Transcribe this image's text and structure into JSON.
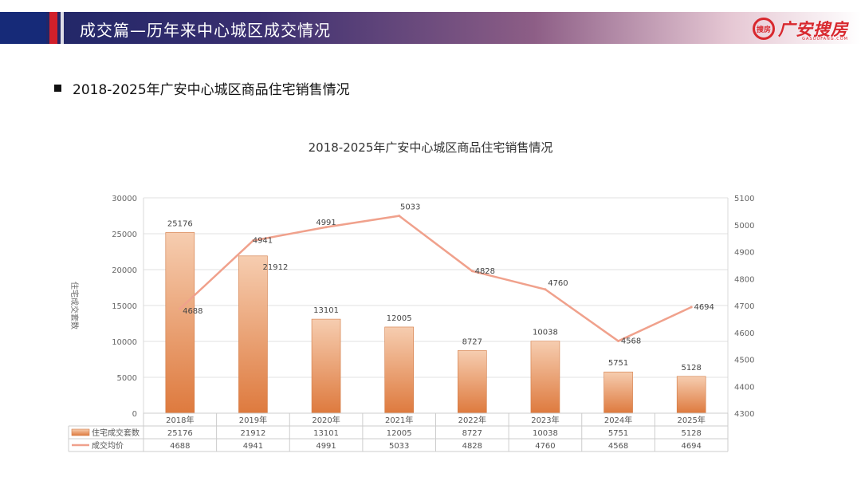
{
  "header": {
    "title": "成交篇—历年来中心城区成交情况",
    "logo_text": "广安搜房",
    "logo_mark": "搜房",
    "logo_sub": "GASOUFANG.COM"
  },
  "section": {
    "subtitle": "2018-2025年广安中心城区商品住宅销售情况"
  },
  "colors": {
    "bar": "#e8905a",
    "line": "#f0a18c",
    "banner": "#1b2566",
    "accent": "#d1202b"
  },
  "chart_data": {
    "type": "bar+line",
    "title": "2018-2025年广安中心城区商品住宅销售情况",
    "categories": [
      "2018年",
      "2019年",
      "2020年",
      "2021年",
      "2022年",
      "2023年",
      "2024年",
      "2025年"
    ],
    "series": [
      {
        "name": "住宅成交套数",
        "type": "bar",
        "axis": "left",
        "values": [
          25176,
          21912,
          13101,
          12005,
          8727,
          10038,
          5751,
          5128
        ]
      },
      {
        "name": "成交均价",
        "type": "line",
        "axis": "right",
        "values": [
          4688,
          4941,
          4991,
          5033,
          4828,
          4760,
          4568,
          4694
        ]
      }
    ],
    "ylabel": "住宅成交套数",
    "ylim_left": [
      0,
      30000
    ],
    "yticks_left": [
      0,
      5000,
      10000,
      15000,
      20000,
      25000,
      30000
    ],
    "ylim_right": [
      4300,
      5100
    ],
    "yticks_right": [
      4300,
      4400,
      4500,
      4600,
      4700,
      4800,
      4900,
      5000,
      5100
    ],
    "grid": true,
    "data_table": true
  }
}
